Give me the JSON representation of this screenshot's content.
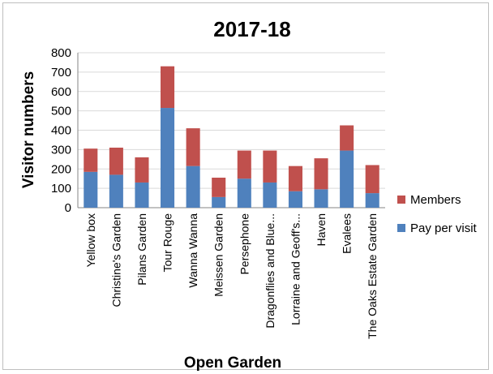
{
  "chart_data": {
    "type": "bar",
    "stacked": true,
    "title": "2017-18",
    "xlabel": "Open Garden",
    "ylabel": "Visitor numbers",
    "ylim": [
      0,
      800
    ],
    "yticks": [
      0,
      100,
      200,
      300,
      400,
      500,
      600,
      700,
      800
    ],
    "grid": true,
    "legend_position": "right",
    "categories": [
      "Yellow box",
      "Christine's Garden",
      "Pilans Garden",
      "Tour Rouge",
      "Wanna Wanna",
      "Meissen Garden",
      "Persephone",
      "Dragonflies and Blue...",
      "Lorraine and Geoff's...",
      "Haven",
      "Evalees",
      "The Oaks Estate Garden"
    ],
    "series": [
      {
        "name": "Pay per visit",
        "color": "#4f81bd",
        "values": [
          185,
          170,
          130,
          515,
          215,
          55,
          150,
          130,
          85,
          95,
          295,
          75
        ]
      },
      {
        "name": "Members",
        "color": "#c0504d",
        "values": [
          120,
          140,
          130,
          215,
          195,
          100,
          145,
          165,
          130,
          160,
          130,
          145
        ]
      }
    ]
  }
}
